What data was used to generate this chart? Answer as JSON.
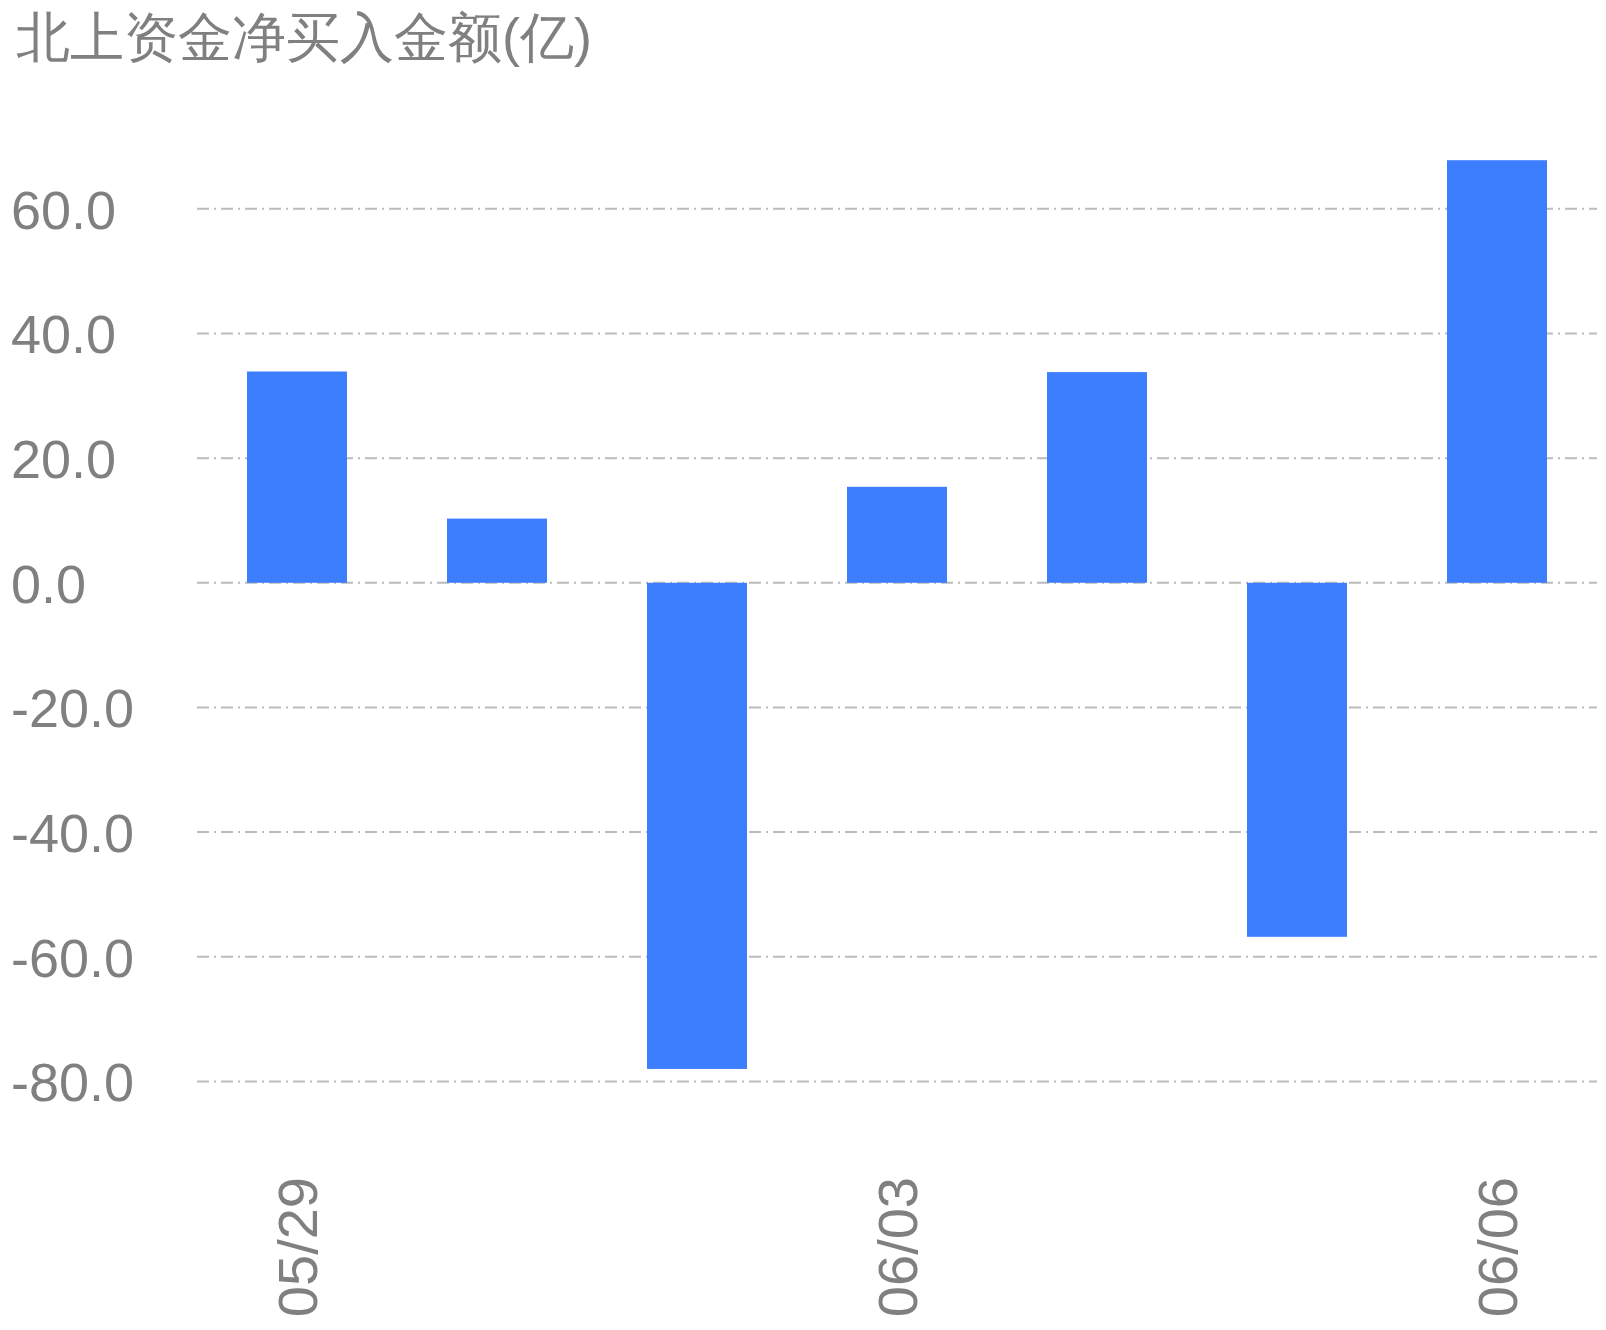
{
  "chart_data": {
    "type": "bar",
    "title": "北上资金净买入金额(亿)",
    "categories": [
      "05/29",
      null,
      null,
      "06/03",
      null,
      null,
      "06/06"
    ],
    "values": [
      33.9,
      10.3,
      -78.0,
      15.4,
      33.8,
      -56.8,
      67.8
    ],
    "color": "#3d7eff",
    "ylim": [
      -80,
      67.8
    ],
    "yticks": [
      {
        "value": -80,
        "label": "-80.0"
      },
      {
        "value": -60,
        "label": "-60.0"
      },
      {
        "value": -40,
        "label": "-40.0"
      },
      {
        "value": -20,
        "label": "-20.0"
      },
      {
        "value": 0,
        "label": "0.0"
      },
      {
        "value": 20,
        "label": "20.0"
      },
      {
        "value": 40,
        "label": "40.0"
      },
      {
        "value": 60,
        "label": "60.0"
      }
    ],
    "grid": "y"
  }
}
